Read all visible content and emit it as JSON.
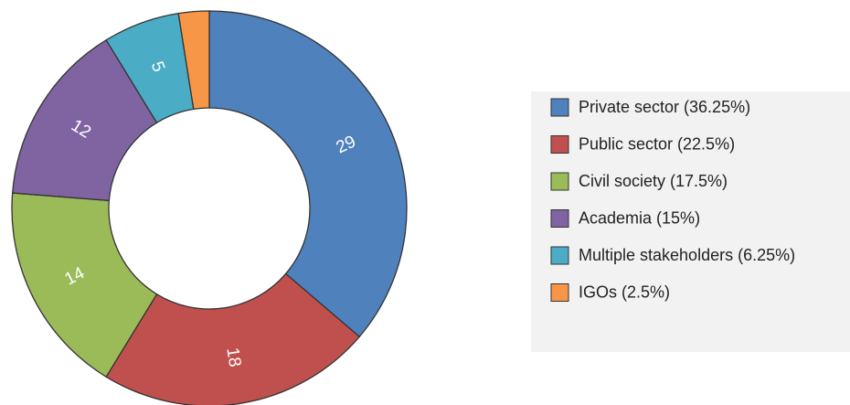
{
  "chart_data": {
    "type": "donut",
    "categories": [
      "Private sector (36.25%)",
      "Public sector (22.5%)",
      "Civil society (17.5%)",
      "Academia (15%)",
      "Multiple stakeholders (6.25%)",
      "IGOs (2.5%)"
    ],
    "values": [
      29,
      18,
      14,
      12,
      5,
      2
    ],
    "colors": [
      "#4f81bd",
      "#c0504d",
      "#9bbb59",
      "#8064a2",
      "#4bacc6",
      "#f79646"
    ],
    "legend": "right"
  }
}
